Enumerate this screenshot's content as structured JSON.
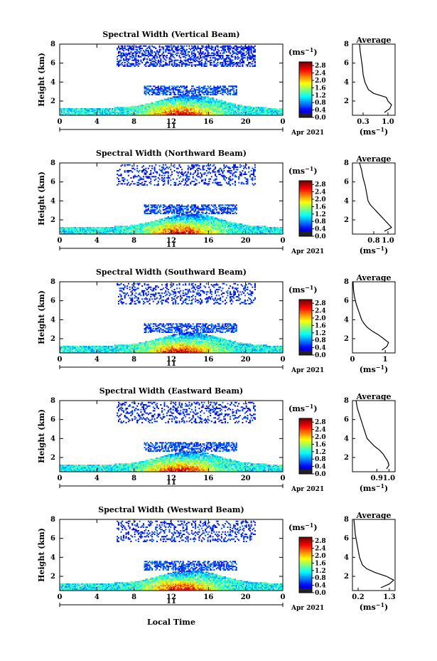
{
  "figure": {
    "xlabel": "Local Time",
    "ylabel": "Height (km)",
    "day_label": "11",
    "date_label": "Apr 2021",
    "unit": "(ms",
    "unit_exp": "−1",
    "average_title": "Average"
  },
  "chart_data": [
    {
      "type": "heatmap",
      "title": "Spectral Width (Vertical Beam)",
      "xlim": [
        0,
        24
      ],
      "ylim": [
        0.5,
        8
      ],
      "xticks": [
        "0",
        "4",
        "8",
        "12",
        "16",
        "20",
        "0"
      ],
      "yticks": [
        "2",
        "4",
        "6",
        "8"
      ],
      "colorbar": {
        "ticks": [
          "0.0",
          "0.4",
          "0.8",
          "1.2",
          "1.6",
          "2.0",
          "2.4",
          "2.8"
        ],
        "range": [
          0,
          3.0
        ]
      },
      "average": {
        "xlim": [
          0,
          1.2
        ],
        "xticks": [
          "0.3",
          "1.0"
        ],
        "xtick_values": [
          0.3,
          1.0
        ],
        "yticks": [
          "2",
          "4",
          "6",
          "8"
        ],
        "profile_x": [
          0.9,
          1.05,
          1.1,
          1.0,
          0.95,
          0.6,
          0.45,
          0.4,
          0.35,
          0.3,
          0.28,
          0.25,
          0.22,
          0.2
        ],
        "profile_y": [
          0.8,
          1.2,
          1.6,
          2.0,
          2.4,
          2.8,
          3.2,
          3.6,
          4.0,
          4.8,
          5.6,
          6.4,
          7.2,
          8.0
        ]
      }
    },
    {
      "type": "heatmap",
      "title": "Spectral Width (Northward Beam)",
      "xlim": [
        0,
        24
      ],
      "ylim": [
        0.5,
        8
      ],
      "xticks": [
        "0",
        "4",
        "8",
        "12",
        "16",
        "20",
        "0"
      ],
      "yticks": [
        "2",
        "4",
        "6",
        "8"
      ],
      "colorbar": {
        "ticks": [
          "0.0",
          "0.4",
          "0.8",
          "1.2",
          "1.6",
          "2.0",
          "2.4",
          "2.8"
        ],
        "range": [
          0,
          3.0
        ]
      },
      "average": {
        "xlim": [
          0.5,
          1.1
        ],
        "xticks": [
          "0.8",
          "1.0"
        ],
        "xtick_values": [
          0.8,
          1.0
        ],
        "yticks": [
          "2",
          "4",
          "6",
          "8"
        ],
        "profile_x": [
          0.95,
          1.05,
          1.0,
          0.95,
          0.9,
          0.85,
          0.8,
          0.75,
          0.72,
          0.7,
          0.68,
          0.65,
          0.63,
          0.6
        ],
        "profile_y": [
          0.8,
          1.2,
          1.6,
          2.0,
          2.4,
          2.8,
          3.2,
          3.6,
          4.0,
          4.8,
          5.6,
          6.4,
          7.2,
          8.0
        ]
      }
    },
    {
      "type": "heatmap",
      "title": "Spectral Width (Southward Beam)",
      "xlim": [
        0,
        24
      ],
      "ylim": [
        0.5,
        8
      ],
      "xticks": [
        "0",
        "4",
        "8",
        "12",
        "16",
        "20",
        "0"
      ],
      "yticks": [
        "2",
        "4",
        "6",
        "8"
      ],
      "colorbar": {
        "ticks": [
          "0.0",
          "0.4",
          "0.8",
          "1.2",
          "1.6",
          "2.0",
          "2.4",
          "2.8"
        ],
        "range": [
          0,
          3.0
        ]
      },
      "average": {
        "xlim": [
          0,
          1.3
        ],
        "xticks": [
          "0",
          "1"
        ],
        "xtick_values": [
          0,
          1
        ],
        "yticks": [
          "2",
          "4",
          "6",
          "8"
        ],
        "profile_x": [
          0.9,
          1.05,
          1.1,
          0.95,
          0.8,
          0.6,
          0.45,
          0.35,
          0.28,
          0.2,
          0.12,
          0.06,
          0.03,
          0.02
        ],
        "profile_y": [
          0.8,
          1.2,
          1.6,
          2.0,
          2.4,
          2.8,
          3.2,
          3.6,
          4.0,
          4.8,
          5.6,
          6.4,
          7.2,
          8.0
        ]
      }
    },
    {
      "type": "heatmap",
      "title": "Spectral Width (Eastward Beam)",
      "xlim": [
        0,
        24
      ],
      "ylim": [
        0.5,
        8
      ],
      "xticks": [
        "0",
        "4",
        "8",
        "12",
        "16",
        "20",
        "0"
      ],
      "yticks": [
        "2",
        "4",
        "6",
        "8"
      ],
      "colorbar": {
        "ticks": [
          "0.0",
          "0.4",
          "0.8",
          "1.2",
          "1.6",
          "2.0",
          "2.4",
          "2.8"
        ],
        "range": [
          0,
          3.0
        ]
      },
      "average": {
        "xlim": [
          0.7,
          1.05
        ],
        "xticks": [
          "0.9",
          "1.0"
        ],
        "xtick_values": [
          0.9,
          1.0
        ],
        "yticks": [
          "2",
          "4",
          "6",
          "8"
        ],
        "profile_x": [
          0.98,
          1.0,
          0.99,
          0.97,
          0.95,
          0.92,
          0.88,
          0.85,
          0.82,
          0.8,
          0.78,
          0.76,
          0.74,
          0.73
        ],
        "profile_y": [
          0.8,
          1.2,
          1.6,
          2.0,
          2.4,
          2.8,
          3.2,
          3.6,
          4.0,
          4.8,
          5.6,
          6.4,
          7.2,
          8.0
        ]
      }
    },
    {
      "type": "heatmap",
      "title": "Spectral Width (Westward Beam)",
      "xlim": [
        0,
        24
      ],
      "ylim": [
        0.5,
        8
      ],
      "xticks": [
        "0",
        "4",
        "8",
        "12",
        "16",
        "20",
        "0"
      ],
      "yticks": [
        "2",
        "4",
        "6",
        "8"
      ],
      "colorbar": {
        "ticks": [
          "0.0",
          "0.4",
          "0.8",
          "1.2",
          "1.6",
          "2.0",
          "2.4",
          "2.8"
        ],
        "range": [
          0,
          3.0
        ]
      },
      "average": {
        "xlim": [
          0,
          1.5
        ],
        "xticks": [
          "0.2",
          "1.3"
        ],
        "xtick_values": [
          0.2,
          1.3
        ],
        "yticks": [
          "2",
          "4",
          "6",
          "8"
        ],
        "profile_x": [
          1.0,
          1.3,
          1.45,
          1.2,
          0.8,
          0.5,
          0.35,
          0.3,
          0.25,
          0.2,
          0.15,
          0.1,
          0.08,
          0.05
        ],
        "profile_y": [
          0.8,
          1.2,
          1.6,
          2.0,
          2.4,
          2.8,
          3.2,
          3.6,
          4.0,
          4.8,
          5.6,
          6.4,
          7.2,
          8.0
        ]
      }
    }
  ]
}
